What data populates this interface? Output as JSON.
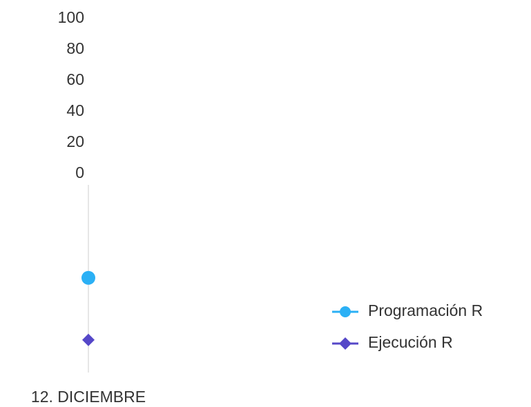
{
  "chart_data": {
    "type": "line",
    "categories": [
      "12. DICIEMBRE"
    ],
    "series": [
      {
        "name": "Programación R",
        "color": "#2bb0f5",
        "marker": "circle",
        "values": [
          -67
        ]
      },
      {
        "name": "Ejecución R",
        "color": "#5547c8",
        "marker": "diamond",
        "values": [
          -107
        ]
      }
    ],
    "ylim": [
      -128,
      100
    ],
    "yticks": [
      0,
      20,
      40,
      60,
      80,
      100
    ],
    "legend": "right"
  }
}
